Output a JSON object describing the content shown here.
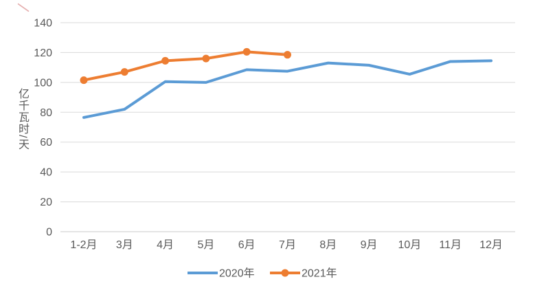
{
  "chart_data": {
    "type": "line",
    "title": "",
    "categories": [
      "1-2月",
      "3月",
      "4月",
      "5月",
      "6月",
      "7月",
      "8月",
      "9月",
      "10月",
      "11月",
      "12月"
    ],
    "series": [
      {
        "name": "2020年",
        "color": "#5B9BD5",
        "marker": false,
        "values": [
          76.5,
          82,
          100.5,
          100,
          108.5,
          107.5,
          113,
          111.5,
          105.5,
          114,
          114.5
        ]
      },
      {
        "name": "2021年",
        "color": "#ED7D31",
        "marker": true,
        "values": [
          101.5,
          107,
          114.5,
          116,
          120.5,
          118.5
        ]
      }
    ],
    "xlabel": "",
    "ylabel": "亿千瓦时/天",
    "ylim": [
      0,
      140
    ],
    "yticks": [
      0,
      20,
      40,
      60,
      80,
      100,
      120,
      140
    ],
    "grid": true,
    "legend_position": "bottom",
    "legend": [
      "2020年",
      "2021年"
    ],
    "axis_text_color": "#595959",
    "gridline_color": "#D9D9D9",
    "axisline_color": "#C8C8C8"
  },
  "annotations": {
    "pen_mark_color": "#C85050"
  }
}
